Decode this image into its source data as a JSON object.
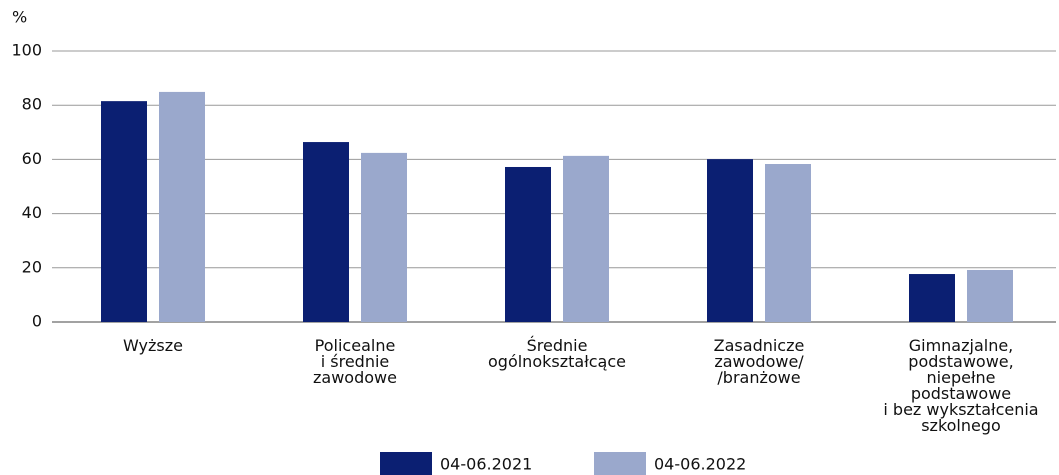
{
  "chart_data": {
    "type": "bar",
    "y_label": "%",
    "categories": [
      "Wyższe",
      "Policealne\ni średnie\nzawodowe",
      "Średnie\nogólnokształcące",
      "Zasadnicze\nzawodowe/\n/branżowe",
      "Gimnazjalne,\npodstawowe,\nniepełne\npodstawowe\ni bez wykształcenia\nszkolnego"
    ],
    "series": [
      {
        "name": "04-06.2021",
        "color": "#0b1f72",
        "values": [
          81.5,
          66.4,
          57.2,
          60.1,
          17.7
        ]
      },
      {
        "name": "04-06.2022",
        "color": "#9aa8cc",
        "values": [
          84.9,
          62.4,
          61.3,
          58.3,
          19.2
        ]
      }
    ],
    "ylim": [
      0,
      100
    ],
    "yticks": [
      0,
      20,
      40,
      60,
      80,
      100
    ],
    "grid": true,
    "legend": "bottom"
  }
}
